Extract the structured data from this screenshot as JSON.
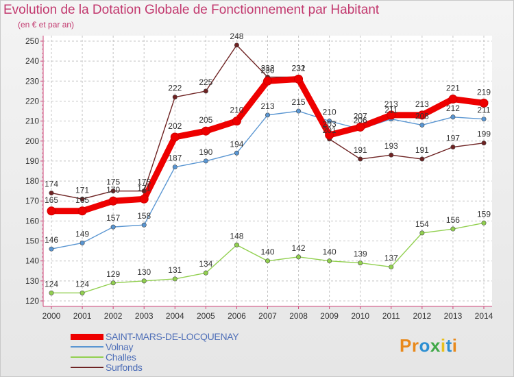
{
  "title": "Evolution de la Dotation Globale de Fonctionnement par Habitant",
  "subtitle": "(en € et par an)",
  "logo": {
    "text": "Proxiti",
    "letters": [
      "P",
      "r",
      "o",
      "x",
      "i",
      "t",
      "i"
    ],
    "colors": [
      "#e8891c",
      "#e8891c",
      "#2c8fd2",
      "#3fa847",
      "#e8c01c",
      "#2c8fd2",
      "#e8891c"
    ]
  },
  "chart_data": {
    "type": "line",
    "title": "Evolution de la Dotation Globale de Fonctionnement par Habitant",
    "subtitle": "(en € et par an)",
    "x": [
      "2000",
      "2001",
      "2002",
      "2003",
      "2004",
      "2005",
      "2006",
      "2007",
      "2008",
      "2009",
      "2010",
      "2011",
      "2012",
      "2013",
      "2014"
    ],
    "yticks": [
      120,
      130,
      140,
      150,
      160,
      170,
      180,
      190,
      200,
      210,
      220,
      230,
      240,
      250
    ],
    "ylim": [
      120,
      250
    ],
    "grid": true,
    "legend_position": "bottom-left",
    "series": [
      {
        "name": "Surfonds",
        "color": "#6e2323",
        "emphasis": false,
        "values": [
          174,
          171,
          175,
          175,
          222,
          225,
          248,
          232,
          232,
          201,
          191,
          193,
          191,
          197,
          199
        ],
        "labels": [
          "174",
          "171",
          "175",
          "175",
          "222",
          "225",
          "248",
          "232",
          "232",
          "201",
          "191",
          "193",
          "191",
          "197",
          "199"
        ]
      },
      {
        "name": "Volnay",
        "color": "#5a96d2",
        "emphasis": false,
        "values": [
          146,
          149,
          157,
          158,
          187,
          190,
          194,
          213,
          215,
          210,
          206,
          211,
          208,
          212,
          211
        ],
        "labels": [
          "146",
          "149",
          "157",
          "158",
          "187",
          "190",
          "194",
          "213",
          "215",
          "210",
          "206",
          "211",
          "208",
          "212",
          "211"
        ]
      },
      {
        "name": "Challes",
        "color": "#92d050",
        "emphasis": false,
        "values": [
          124,
          124,
          129,
          130,
          131,
          134,
          148,
          140,
          142,
          140,
          139,
          137,
          154,
          156,
          159
        ],
        "labels": [
          "124",
          "124",
          "129",
          "130",
          "131",
          "134",
          "148",
          "140",
          "142",
          "140",
          "139",
          "137",
          "154",
          "156",
          "159"
        ]
      },
      {
        "name": "SAINT-MARS-DE-LOCQUENAY",
        "color": "#ee0000",
        "emphasis": true,
        "values": [
          165,
          165,
          170,
          171,
          202,
          205,
          210,
          230,
          231,
          203,
          207,
          213,
          213,
          221,
          219
        ],
        "labels": [
          "165",
          "165",
          "170",
          "171",
          "202",
          "205",
          "210",
          "230",
          "231",
          "203",
          "207",
          "213",
          "213",
          "221",
          "219"
        ]
      }
    ],
    "legend": [
      "SAINT-MARS-DE-LOCQUENAY",
      "Volnay",
      "Challes",
      "Surfonds"
    ]
  }
}
